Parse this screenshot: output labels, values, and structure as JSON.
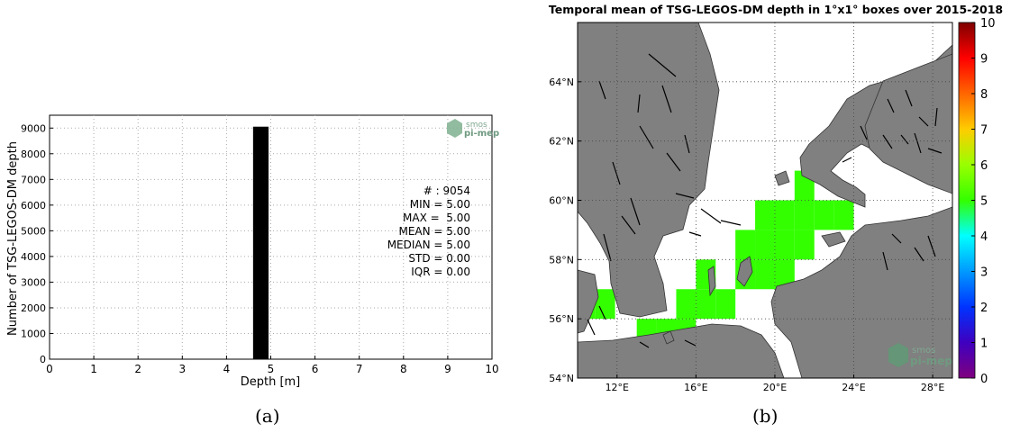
{
  "panel_labels": [
    "(a)",
    "(b)"
  ],
  "logo_text": [
    "smos",
    "pi-mep"
  ],
  "chart_data": [
    {
      "type": "bar",
      "title": "",
      "xlabel": "Depth [m]",
      "ylabel": "Number of TSG-LEGOS-DM depth",
      "xlim": [
        0,
        10
      ],
      "ylim": [
        0,
        9500
      ],
      "x_ticks": [
        "0",
        "1",
        "2",
        "3",
        "4",
        "5",
        "6",
        "7",
        "8",
        "9",
        "10"
      ],
      "y_ticks": [
        "0",
        "1000",
        "2000",
        "3000",
        "4000",
        "5000",
        "6000",
        "7000",
        "8000",
        "9000"
      ],
      "grid": true,
      "bins": [
        {
          "x0": 4.6,
          "x1": 4.95,
          "value": 9054
        }
      ],
      "bar_color": "#000000",
      "stats": [
        "# : 9054",
        "MIN = 5.00",
        "MAX =  5.00",
        "MEAN = 5.00",
        "MEDIAN = 5.00",
        "STD = 0.00",
        "IQR = 0.00"
      ]
    },
    {
      "type": "heatmap",
      "title": "Temporal mean of TSG-LEGOS-DM depth in 1°x1° boxes over 2015-2018",
      "xlim": [
        10,
        29
      ],
      "ylim": [
        54,
        66
      ],
      "x_ticks": [
        {
          "value": 12,
          "label": "12°E"
        },
        {
          "value": 16,
          "label": "16°E"
        },
        {
          "value": 20,
          "label": "20°E"
        },
        {
          "value": 24,
          "label": "24°E"
        },
        {
          "value": 28,
          "label": "28°E"
        }
      ],
      "y_ticks": [
        {
          "value": 54,
          "label": "54°N"
        },
        {
          "value": 56,
          "label": "56°N"
        },
        {
          "value": 58,
          "label": "58°N"
        },
        {
          "value": 60,
          "label": "60°N"
        },
        {
          "value": 62,
          "label": "62°N"
        },
        {
          "value": 64,
          "label": "64°N"
        }
      ],
      "grid": true,
      "land_color": "#808080",
      "cell_value": 5,
      "cell_color": "#33ff00",
      "cells": [
        {
          "lon": 10.4,
          "lat": 56.5
        },
        {
          "lon": 11.4,
          "lat": 56.5
        },
        {
          "lon": 13.5,
          "lat": 55.5
        },
        {
          "lon": 14.5,
          "lat": 55.5
        },
        {
          "lon": 15.5,
          "lat": 55.5
        },
        {
          "lon": 15.5,
          "lat": 56.5
        },
        {
          "lon": 16.5,
          "lat": 56.5
        },
        {
          "lon": 17.5,
          "lat": 56.5
        },
        {
          "lon": 16.5,
          "lat": 57.5
        },
        {
          "lon": 18.5,
          "lat": 57.5
        },
        {
          "lon": 18.5,
          "lat": 58.5
        },
        {
          "lon": 19.5,
          "lat": 57.5
        },
        {
          "lon": 19.5,
          "lat": 58.5
        },
        {
          "lon": 20.5,
          "lat": 57.5
        },
        {
          "lon": 20.5,
          "lat": 58.5
        },
        {
          "lon": 19.5,
          "lat": 59.5
        },
        {
          "lon": 20.5,
          "lat": 59.5
        },
        {
          "lon": 21.5,
          "lat": 59.5
        },
        {
          "lon": 21.5,
          "lat": 58.5
        },
        {
          "lon": 21.5,
          "lat": 60.5
        },
        {
          "lon": 22.5,
          "lat": 59.5
        },
        {
          "lon": 23.5,
          "lat": 59.5
        }
      ],
      "colorbar": {
        "min": 0,
        "max": 10,
        "ticks": [
          "0",
          "1",
          "2",
          "3",
          "4",
          "5",
          "6",
          "7",
          "8",
          "9",
          "10"
        ]
      }
    }
  ]
}
